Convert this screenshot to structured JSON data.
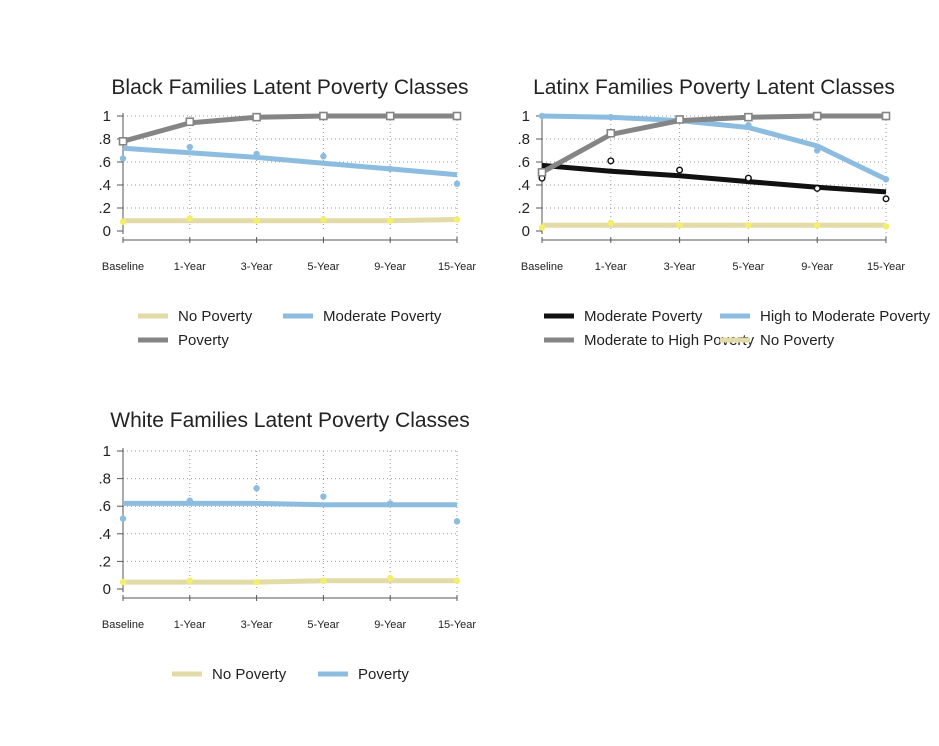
{
  "chart_data": [
    {
      "type": "line",
      "title": "Black Families Latent Poverty Classes",
      "categories": [
        "Baseline",
        "1-Year",
        "3-Year",
        "5-Year",
        "9-Year",
        "15-Year"
      ],
      "yticks": [
        "0",
        ".2",
        ".4",
        ".6",
        ".8",
        "1"
      ],
      "ylim": [
        0,
        1
      ],
      "grid": true,
      "series": [
        {
          "name": "No Poverty",
          "color": "#e3dba7",
          "marker": "dot",
          "markerColor": "#f3ef6a",
          "observed": [
            0.08,
            0.11,
            0.09,
            0.1,
            0.09,
            0.1
          ],
          "fitted": [
            0.09,
            0.09,
            0.09,
            0.09,
            0.09,
            0.1
          ]
        },
        {
          "name": "Moderate Poverty",
          "color": "#8cbde0",
          "marker": "dot",
          "markerColor": "#8cbde0",
          "observed": [
            0.63,
            0.73,
            0.67,
            0.65,
            0.54,
            0.41
          ],
          "fitted": [
            0.72,
            0.68,
            0.64,
            0.59,
            0.54,
            0.49
          ]
        },
        {
          "name": "Poverty",
          "color": "#858585",
          "marker": "square",
          "markerColor": "#858585",
          "observed": [
            0.78,
            0.95,
            0.99,
            1.0,
            1.0,
            1.0
          ],
          "fitted": [
            0.78,
            0.94,
            0.99,
            1.0,
            1.0,
            1.0
          ]
        }
      ]
    },
    {
      "type": "line",
      "title": "Latinx Families Poverty Latent Classes",
      "categories": [
        "Baseline",
        "1-Year",
        "3-Year",
        "5-Year",
        "9-Year",
        "15-Year"
      ],
      "yticks": [
        "0",
        ".2",
        ".4",
        ".6",
        ".8",
        "1"
      ],
      "ylim": [
        0,
        1
      ],
      "grid": true,
      "series": [
        {
          "name": "Moderate Poverty",
          "color": "#111111",
          "marker": "ring",
          "markerColor": "#111111",
          "observed": [
            0.46,
            0.61,
            0.53,
            0.46,
            0.37,
            0.28
          ],
          "fitted": [
            0.57,
            0.52,
            0.48,
            0.43,
            0.38,
            0.34
          ]
        },
        {
          "name": "High to Moderate Poverty",
          "color": "#8cbde0",
          "marker": "dot",
          "markerColor": "#8cbde0",
          "observed": [
            1.0,
            0.99,
            0.96,
            0.92,
            0.7,
            0.45
          ],
          "fitted": [
            1.0,
            0.99,
            0.96,
            0.9,
            0.74,
            0.45
          ]
        },
        {
          "name": "Moderate to High Poverty",
          "color": "#858585",
          "marker": "square",
          "markerColor": "#858585",
          "observed": [
            0.51,
            0.85,
            0.97,
            0.99,
            1.0,
            1.0
          ],
          "fitted": [
            0.51,
            0.84,
            0.96,
            0.99,
            1.0,
            1.0
          ]
        },
        {
          "name": "No Poverty",
          "color": "#e3dba7",
          "marker": "dot",
          "markerColor": "#f3ef6a",
          "observed": [
            0.03,
            0.07,
            0.05,
            0.05,
            0.05,
            0.04
          ],
          "fitted": [
            0.05,
            0.05,
            0.05,
            0.05,
            0.05,
            0.05
          ]
        }
      ]
    },
    {
      "type": "line",
      "title": "White Families Latent Poverty Classes",
      "categories": [
        "Baseline",
        "1-Year",
        "3-Year",
        "5-Year",
        "9-Year",
        "15-Year"
      ],
      "yticks": [
        "0",
        ".2",
        ".4",
        ".6",
        ".8",
        "1"
      ],
      "ylim": [
        0,
        1
      ],
      "grid": true,
      "series": [
        {
          "name": "No Poverty",
          "color": "#e3dba7",
          "marker": "dot",
          "markerColor": "#f3ef6a",
          "observed": [
            0.05,
            0.06,
            0.05,
            0.06,
            0.08,
            0.06
          ],
          "fitted": [
            0.05,
            0.05,
            0.05,
            0.06,
            0.06,
            0.06
          ]
        },
        {
          "name": "Poverty",
          "color": "#8cbde0",
          "marker": "dot",
          "markerColor": "#8cbde0",
          "observed": [
            0.51,
            0.64,
            0.73,
            0.67,
            0.62,
            0.49
          ],
          "fitted": [
            0.62,
            0.62,
            0.62,
            0.61,
            0.61,
            0.61
          ]
        }
      ]
    }
  ]
}
